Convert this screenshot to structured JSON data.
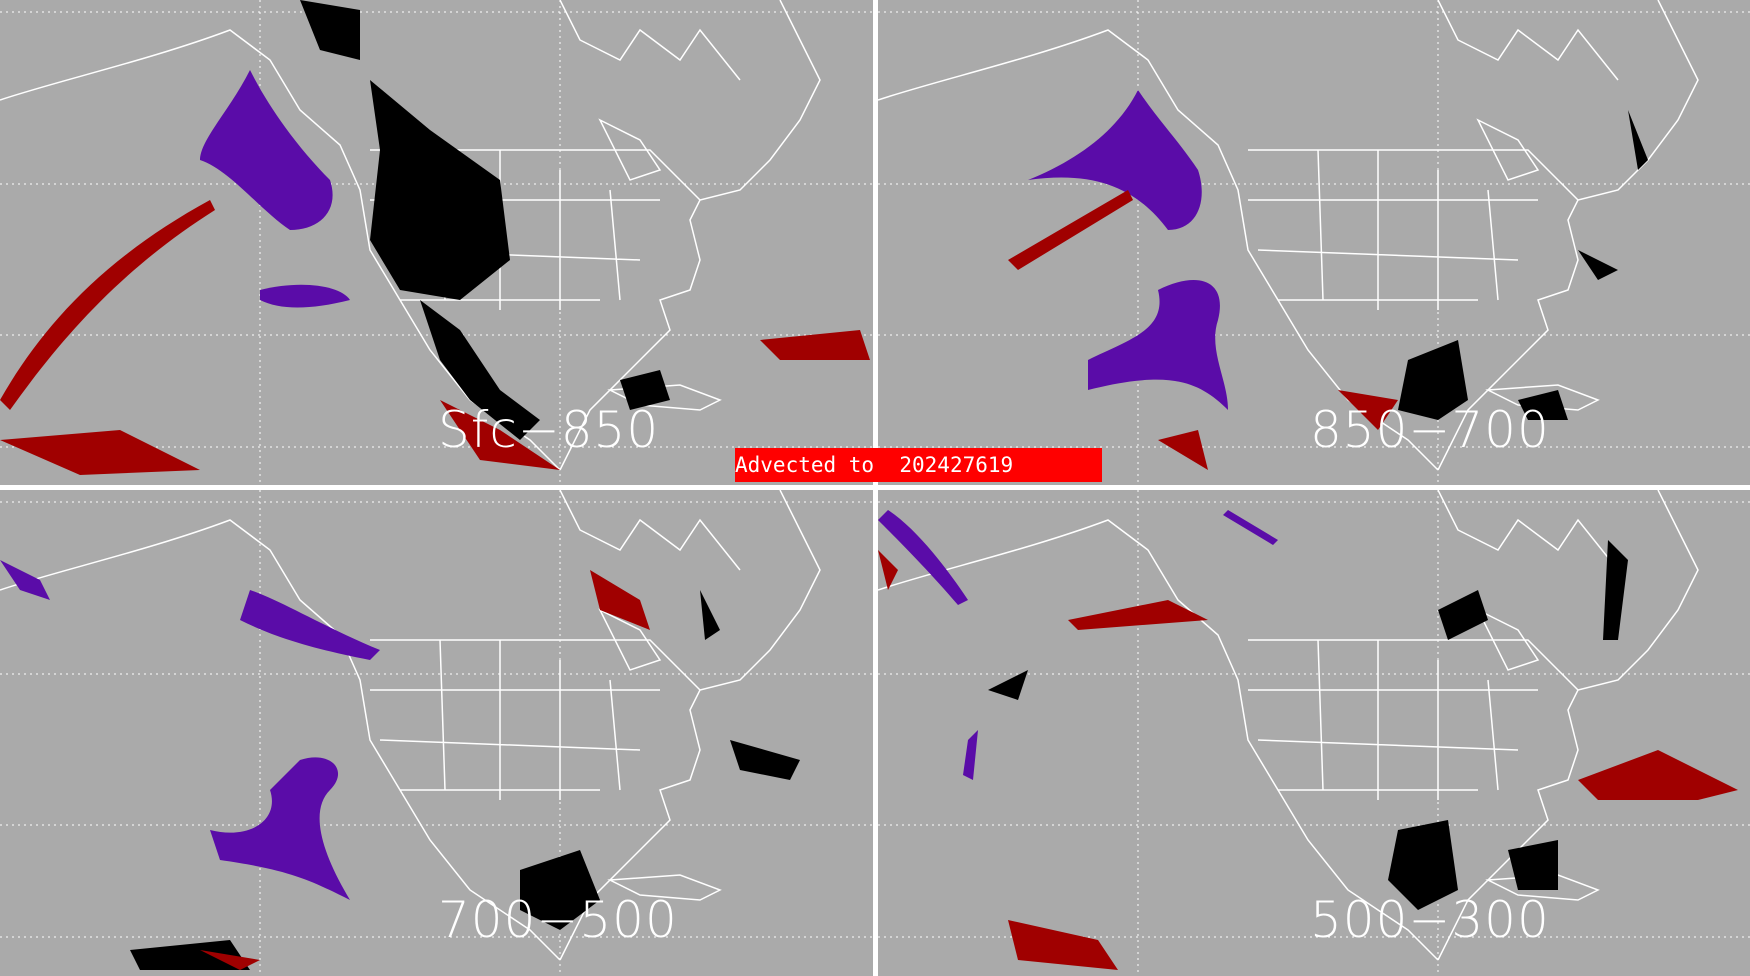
{
  "panels": [
    {
      "label": "Sfc−850"
    },
    {
      "label": "850−700"
    },
    {
      "label": "700−500"
    },
    {
      "label": "500−300"
    }
  ],
  "advected": {
    "prefix": "Advected to",
    "value": "202427619"
  },
  "colors": {
    "background": "#aaaaaa",
    "purple": "#5a0ca8",
    "black": "#000000",
    "red": "#a00000",
    "label_box": "#ff0000",
    "lines": "#ffffff"
  }
}
